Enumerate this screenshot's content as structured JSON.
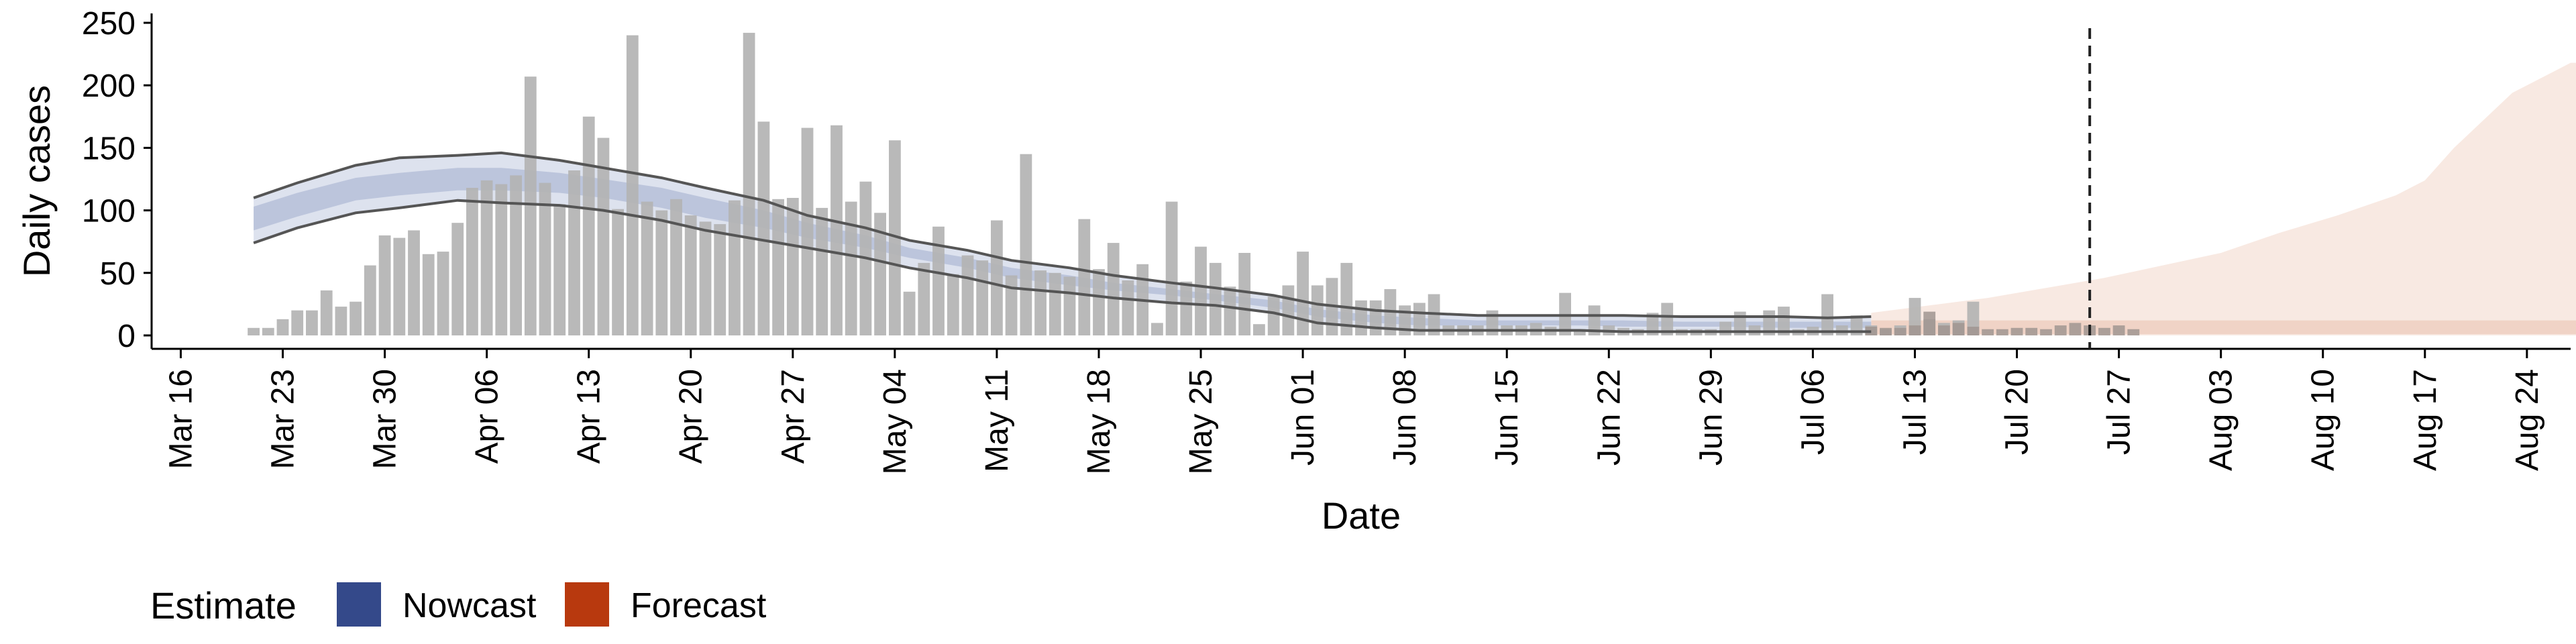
{
  "chart_data": {
    "type": "bar",
    "xlabel": "Date",
    "ylabel": "Daily cases",
    "ylim": [
      0,
      250
    ],
    "y_ticks": [
      0,
      50,
      100,
      150,
      200,
      250
    ],
    "x_range": [
      "2020-03-14",
      "2020-08-27"
    ],
    "x_ticks": [
      {
        "date": "2020-03-16",
        "label": "Mar 16"
      },
      {
        "date": "2020-03-23",
        "label": "Mar 23"
      },
      {
        "date": "2020-03-30",
        "label": "Mar 30"
      },
      {
        "date": "2020-04-06",
        "label": "Apr 06"
      },
      {
        "date": "2020-04-13",
        "label": "Apr 13"
      },
      {
        "date": "2020-04-20",
        "label": "Apr 20"
      },
      {
        "date": "2020-04-27",
        "label": "Apr 27"
      },
      {
        "date": "2020-05-04",
        "label": "May 04"
      },
      {
        "date": "2020-05-11",
        "label": "May 11"
      },
      {
        "date": "2020-05-18",
        "label": "May 18"
      },
      {
        "date": "2020-05-25",
        "label": "May 25"
      },
      {
        "date": "2020-06-01",
        "label": "Jun 01"
      },
      {
        "date": "2020-06-08",
        "label": "Jun 08"
      },
      {
        "date": "2020-06-15",
        "label": "Jun 15"
      },
      {
        "date": "2020-06-22",
        "label": "Jun 22"
      },
      {
        "date": "2020-06-29",
        "label": "Jun 29"
      },
      {
        "date": "2020-07-06",
        "label": "Jul 06"
      },
      {
        "date": "2020-07-13",
        "label": "Jul 13"
      },
      {
        "date": "2020-07-20",
        "label": "Jul 20"
      },
      {
        "date": "2020-07-27",
        "label": "Jul 27"
      },
      {
        "date": "2020-08-03",
        "label": "Aug 03"
      },
      {
        "date": "2020-08-10",
        "label": "Aug 10"
      },
      {
        "date": "2020-08-17",
        "label": "Aug 17"
      },
      {
        "date": "2020-08-24",
        "label": "Aug 24"
      }
    ],
    "cases_start_date": "2020-03-21",
    "observed_cases": [
      6,
      6,
      13,
      20,
      20,
      36,
      23,
      27,
      56,
      80,
      78,
      84,
      65,
      67,
      90,
      118,
      124,
      121,
      128,
      207,
      122,
      105,
      132,
      175,
      158,
      101,
      240,
      107,
      100,
      109,
      96,
      91,
      89,
      108,
      242,
      171,
      109,
      110,
      166,
      102,
      168,
      107,
      123,
      98,
      156,
      35,
      58,
      87,
      49,
      64,
      60,
      92,
      48,
      145,
      52,
      50,
      47,
      93,
      53,
      74,
      44,
      57,
      10,
      107,
      43,
      71,
      58,
      39,
      66,
      9,
      31,
      40,
      67,
      40,
      46,
      58,
      28,
      28,
      37,
      24,
      26,
      33,
      8,
      8,
      8,
      20,
      8,
      8,
      10,
      7,
      34,
      5,
      24,
      8,
      6,
      5,
      18,
      26,
      5,
      5,
      5,
      11,
      19,
      8,
      20,
      23,
      5,
      7,
      33,
      8,
      16,
      8,
      5,
      8,
      30,
      13,
      10,
      12,
      27
    ],
    "forecast_shown_cases": [
      7,
      6,
      6,
      8,
      19,
      8,
      10,
      7,
      5,
      5,
      6,
      6,
      5,
      8,
      10,
      8,
      6,
      8,
      5
    ],
    "shown_cases_start_date": "2020-07-10",
    "nowcast": {
      "start_date": "2020-03-21",
      "end_date": "2020-07-10",
      "upper90": [
        [
          0,
          110
        ],
        [
          3,
          122
        ],
        [
          7,
          136
        ],
        [
          10,
          142
        ],
        [
          14,
          144
        ],
        [
          17,
          146
        ],
        [
          21,
          140
        ],
        [
          24,
          134
        ],
        [
          28,
          126
        ],
        [
          31,
          118
        ],
        [
          35,
          108
        ],
        [
          38,
          96
        ],
        [
          42,
          86
        ],
        [
          45,
          76
        ],
        [
          49,
          68
        ],
        [
          52,
          60
        ],
        [
          56,
          54
        ],
        [
          59,
          48
        ],
        [
          63,
          42
        ],
        [
          66,
          38
        ],
        [
          70,
          32
        ],
        [
          73,
          25
        ],
        [
          77,
          20
        ],
        [
          80,
          18
        ],
        [
          84,
          16
        ],
        [
          87,
          16
        ],
        [
          91,
          16
        ],
        [
          94,
          16
        ],
        [
          98,
          15
        ],
        [
          101,
          15
        ],
        [
          105,
          15
        ],
        [
          108,
          14
        ],
        [
          111,
          15
        ]
      ],
      "lower90": [
        [
          0,
          74
        ],
        [
          3,
          86
        ],
        [
          7,
          98
        ],
        [
          10,
          102
        ],
        [
          14,
          108
        ],
        [
          17,
          106
        ],
        [
          21,
          104
        ],
        [
          24,
          100
        ],
        [
          28,
          92
        ],
        [
          31,
          84
        ],
        [
          35,
          76
        ],
        [
          38,
          70
        ],
        [
          42,
          62
        ],
        [
          45,
          54
        ],
        [
          49,
          46
        ],
        [
          52,
          38
        ],
        [
          56,
          34
        ],
        [
          59,
          30
        ],
        [
          63,
          26
        ],
        [
          66,
          24
        ],
        [
          70,
          18
        ],
        [
          73,
          10
        ],
        [
          77,
          6
        ],
        [
          80,
          4
        ],
        [
          84,
          4
        ],
        [
          87,
          4
        ],
        [
          91,
          4
        ],
        [
          94,
          3
        ],
        [
          98,
          3
        ],
        [
          101,
          3
        ],
        [
          105,
          3
        ],
        [
          108,
          3
        ],
        [
          111,
          3
        ]
      ],
      "upper50": [
        [
          0,
          103
        ],
        [
          3,
          114
        ],
        [
          7,
          126
        ],
        [
          10,
          130
        ],
        [
          14,
          134
        ],
        [
          17,
          134
        ],
        [
          21,
          130
        ],
        [
          24,
          125
        ],
        [
          28,
          118
        ],
        [
          31,
          110
        ],
        [
          35,
          100
        ],
        [
          38,
          90
        ],
        [
          42,
          80
        ],
        [
          45,
          70
        ],
        [
          49,
          62
        ],
        [
          52,
          54
        ],
        [
          56,
          48
        ],
        [
          59,
          42
        ],
        [
          63,
          37
        ],
        [
          66,
          33
        ],
        [
          70,
          28
        ],
        [
          73,
          21
        ],
        [
          77,
          16
        ],
        [
          80,
          14
        ],
        [
          84,
          12
        ],
        [
          87,
          12
        ],
        [
          91,
          12
        ],
        [
          94,
          12
        ],
        [
          98,
          11
        ],
        [
          101,
          11
        ],
        [
          105,
          11
        ],
        [
          108,
          11
        ],
        [
          111,
          11
        ]
      ],
      "lower50": [
        [
          0,
          84
        ],
        [
          3,
          95
        ],
        [
          7,
          108
        ],
        [
          10,
          112
        ],
        [
          14,
          116
        ],
        [
          17,
          116
        ],
        [
          21,
          114
        ],
        [
          24,
          110
        ],
        [
          28,
          102
        ],
        [
          31,
          94
        ],
        [
          35,
          86
        ],
        [
          38,
          78
        ],
        [
          42,
          70
        ],
        [
          45,
          62
        ],
        [
          49,
          54
        ],
        [
          52,
          46
        ],
        [
          56,
          40
        ],
        [
          59,
          36
        ],
        [
          63,
          32
        ],
        [
          66,
          28
        ],
        [
          70,
          22
        ],
        [
          73,
          15
        ],
        [
          77,
          10
        ],
        [
          80,
          8
        ],
        [
          84,
          8
        ],
        [
          87,
          8
        ],
        [
          91,
          8
        ],
        [
          94,
          7
        ],
        [
          98,
          7
        ],
        [
          101,
          7
        ],
        [
          105,
          6
        ],
        [
          108,
          6
        ],
        [
          111,
          6
        ]
      ]
    },
    "forecast": {
      "start_date": "2020-07-10",
      "end_date": "2020-08-21",
      "upper90": [
        [
          0,
          18
        ],
        [
          4,
          24
        ],
        [
          8,
          30
        ],
        [
          12,
          38
        ],
        [
          16,
          46
        ],
        [
          20,
          56
        ],
        [
          24,
          66
        ],
        [
          28,
          82
        ],
        [
          32,
          96
        ],
        [
          36,
          112
        ],
        [
          38,
          124
        ],
        [
          40,
          150
        ],
        [
          42,
          172
        ],
        [
          44,
          194
        ],
        [
          46,
          206
        ],
        [
          48,
          218
        ],
        [
          49,
          218
        ]
      ],
      "lower90": [
        [
          0,
          0
        ],
        [
          49,
          0
        ]
      ],
      "upper50": [
        [
          0,
          12
        ],
        [
          4,
          12
        ],
        [
          8,
          12
        ],
        [
          12,
          12
        ],
        [
          16,
          12
        ],
        [
          20,
          12
        ],
        [
          24,
          12
        ],
        [
          28,
          12
        ],
        [
          32,
          12
        ],
        [
          36,
          12
        ],
        [
          40,
          12
        ],
        [
          44,
          12
        ],
        [
          49,
          12
        ]
      ],
      "lower50": [
        [
          0,
          1
        ],
        [
          49,
          1
        ]
      ]
    },
    "forecast_date": "2020-07-25",
    "legend": {
      "title": "Estimate",
      "position": "bottom-left",
      "items": [
        {
          "label": "Nowcast",
          "color": "#34498a"
        },
        {
          "label": "Forecast",
          "color": "#b8390e"
        }
      ]
    },
    "colors": {
      "bars": "#b3b3b3",
      "bars_overlay": "#a09590",
      "nowcast_outer": "#dde2ee",
      "nowcast_inner": "#bcc5dc",
      "forecast_outer": "#f8e9e2",
      "forecast_inner": "#f0d3c6",
      "bound_line": "#555555",
      "vline": "#222222"
    }
  }
}
